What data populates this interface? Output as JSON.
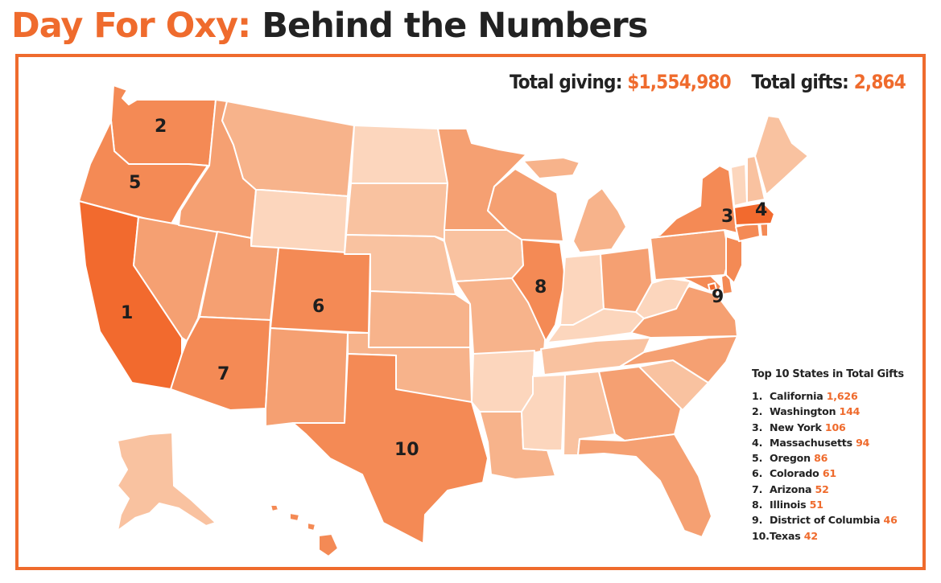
{
  "title": {
    "accent": "Day For Oxy:",
    "main": "Behind the Numbers"
  },
  "totals": {
    "giving_label": "Total giving:",
    "giving_value": "$1,554,980",
    "gifts_label": "Total gifts:",
    "gifts_value": "2,864"
  },
  "legend": {
    "title": "Top 10 States in Total Gifts",
    "items": [
      {
        "rank": "1.",
        "state": "California",
        "gifts": "1,626"
      },
      {
        "rank": "2.",
        "state": "Washington",
        "gifts": "144"
      },
      {
        "rank": "3.",
        "state": "New York",
        "gifts": "106"
      },
      {
        "rank": "4.",
        "state": "Massachusetts",
        "gifts": "94"
      },
      {
        "rank": "5.",
        "state": "Oregon",
        "gifts": "86"
      },
      {
        "rank": "6.",
        "state": "Colorado",
        "gifts": "61"
      },
      {
        "rank": "7.",
        "state": "Arizona",
        "gifts": "52"
      },
      {
        "rank": "8.",
        "state": "Illinois",
        "gifts": "51"
      },
      {
        "rank": "9.",
        "state": "District of Columbia",
        "gifts": "46"
      },
      {
        "rank": "10.",
        "state": "Texas",
        "gifts": "42"
      }
    ]
  },
  "map": {
    "colors": {
      "accent": "#ef6b2d",
      "top": "#f26a2e",
      "high": "#f48a55",
      "mid": "#f5a072",
      "midlow": "#f7b38b",
      "low": "#f9c2a0",
      "lowest": "#fcd6bd"
    },
    "rank_labels": [
      "1",
      "2",
      "3",
      "4",
      "5",
      "6",
      "7",
      "8",
      "9",
      "10"
    ]
  }
}
